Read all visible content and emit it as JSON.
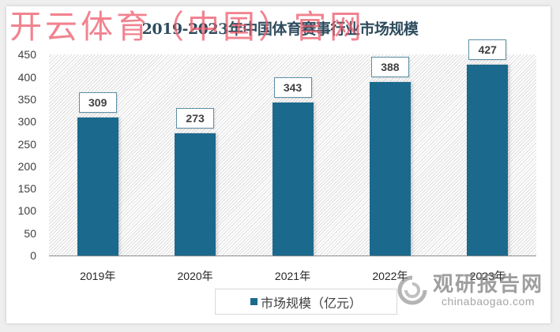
{
  "watermark_top": "开云体育（中国）官网",
  "watermark_logo": {
    "cn": "观研报告网",
    "en": "chinabaogao.com"
  },
  "chart": {
    "title": "2019-2023年中国体育赛事行业市场规模",
    "legend_label": "市场规模（亿元）",
    "bar_color": "#1b6a8e"
  },
  "chart_data": {
    "type": "bar",
    "title": "2019-2023年中国体育赛事行业市场规模",
    "categories": [
      "2019年",
      "2020年",
      "2021年",
      "2022年",
      "2023年"
    ],
    "series": [
      {
        "name": "市场规模（亿元）",
        "values": [
          309,
          273,
          343,
          388,
          427
        ]
      }
    ],
    "value_labels": [
      "309",
      "273",
      "343",
      "388",
      "427"
    ],
    "xlabel": "",
    "ylabel": "",
    "ylim": [
      0,
      450
    ],
    "yticks": [
      "0",
      "50",
      "100",
      "150",
      "200",
      "250",
      "300",
      "350",
      "400",
      "450"
    ],
    "grid": false,
    "legend_position": "bottom"
  }
}
